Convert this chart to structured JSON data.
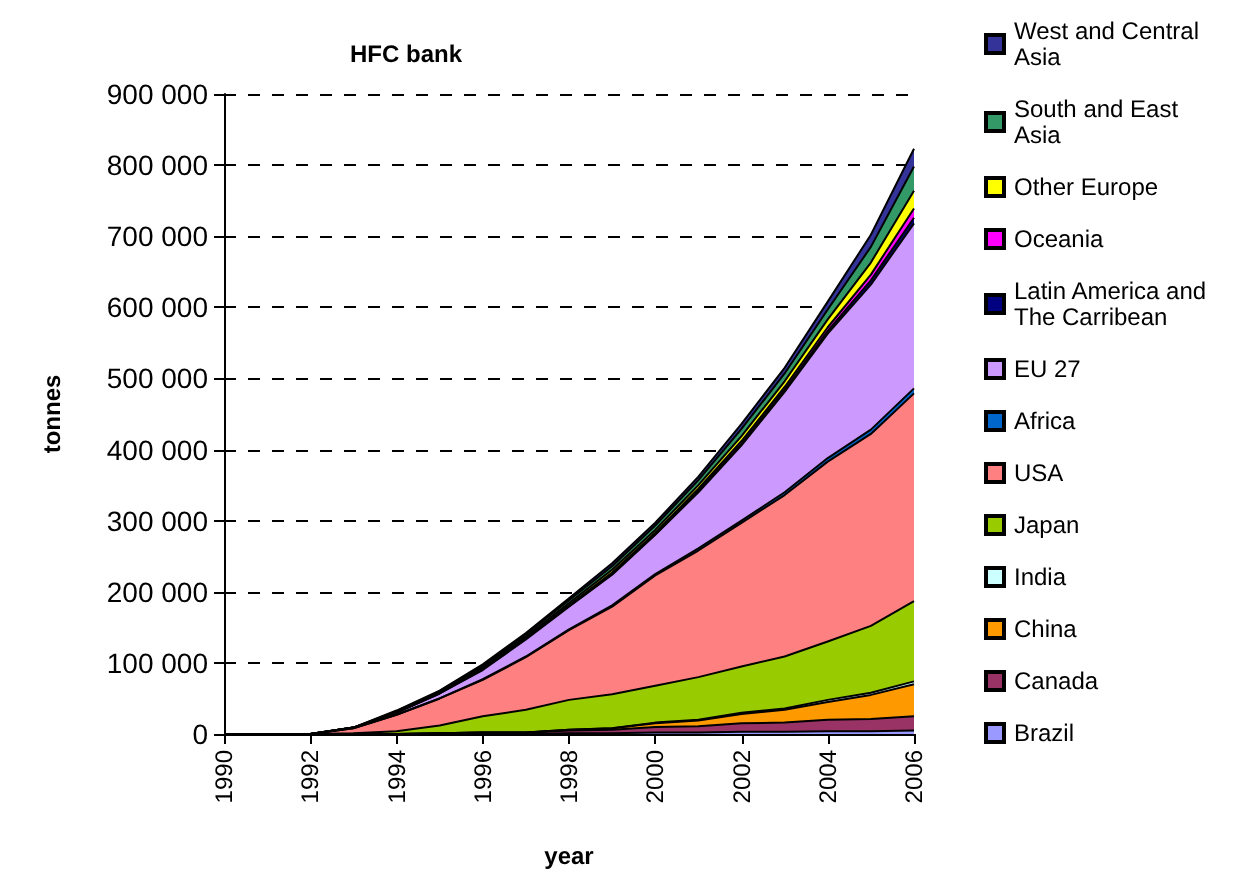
{
  "chart_data": {
    "type": "area",
    "title": "HFC bank",
    "xlabel": "year",
    "ylabel": "tonnes",
    "stacked": true,
    "grid": "y",
    "line_style": "solid",
    "legend": "right",
    "x": [
      1990,
      1991,
      1992,
      1993,
      1994,
      1995,
      1996,
      1997,
      1998,
      1999,
      2000,
      2001,
      2002,
      2003,
      2004,
      2005,
      2006
    ],
    "xlim": [
      1990,
      2006
    ],
    "xticks": [
      1990,
      1992,
      1994,
      1996,
      1998,
      2000,
      2002,
      2004,
      2006
    ],
    "ylim": [
      0,
      900000
    ],
    "yticks": [
      {
        "value": 0,
        "label": "0"
      },
      {
        "value": 100000,
        "label": "100 000"
      },
      {
        "value": 200000,
        "label": "200 000"
      },
      {
        "value": 300000,
        "label": "300 000"
      },
      {
        "value": 400000,
        "label": "400 000"
      },
      {
        "value": 500000,
        "label": "500 000"
      },
      {
        "value": 600000,
        "label": "600 000"
      },
      {
        "value": 700000,
        "label": "700 000"
      },
      {
        "value": 800000,
        "label": "800 000"
      },
      {
        "value": 900000,
        "label": "900 000"
      }
    ],
    "series": [
      {
        "name": "Brazil",
        "color": "#9999ff",
        "values": [
          0,
          0,
          0,
          0,
          0,
          0,
          0,
          0,
          1000,
          1000,
          2000,
          2000,
          3000,
          3000,
          4000,
          4000,
          5000
        ]
      },
      {
        "name": "Canada",
        "color": "#993366",
        "values": [
          0,
          0,
          0,
          0,
          0,
          1000,
          2000,
          2000,
          4000,
          5000,
          8000,
          9000,
          12000,
          13000,
          16000,
          17000,
          20000
        ]
      },
      {
        "name": "China",
        "color": "#ff9900",
        "values": [
          0,
          0,
          0,
          0,
          0,
          0,
          0,
          0,
          1000,
          2000,
          5000,
          8000,
          13000,
          18000,
          25000,
          34000,
          45000
        ]
      },
      {
        "name": "India",
        "color": "#ccffff",
        "values": [
          0,
          0,
          0,
          0,
          0,
          0,
          0,
          0,
          0,
          0,
          1000,
          1000,
          2000,
          2000,
          3000,
          3000,
          4000
        ]
      },
      {
        "name": "Japan",
        "color": "#99cc00",
        "values": [
          0,
          0,
          0,
          1000,
          4000,
          11000,
          23000,
          32000,
          42000,
          48000,
          52000,
          60000,
          65000,
          73000,
          82000,
          94000,
          113000
        ]
      },
      {
        "name": "USA",
        "color": "#ff8080",
        "values": [
          0,
          0,
          0,
          7000,
          23000,
          38000,
          51000,
          74000,
          98000,
          123000,
          155000,
          178000,
          202000,
          227000,
          253000,
          270000,
          292000
        ]
      },
      {
        "name": "Africa",
        "color": "#0066cc",
        "values": [
          0,
          0,
          0,
          0,
          0,
          0,
          1000,
          1000,
          1000,
          2000,
          2000,
          3000,
          3000,
          4000,
          5000,
          6000,
          7000
        ]
      },
      {
        "name": "EU 27",
        "color": "#cc99ff",
        "values": [
          0,
          0,
          0,
          1000,
          3000,
          7000,
          13000,
          24000,
          32000,
          43000,
          55000,
          79000,
          106000,
          141000,
          175000,
          204000,
          232000
        ]
      },
      {
        "name": "Latin America and The Carribean",
        "color": "#000080",
        "values": [
          0,
          0,
          0,
          0,
          0,
          0,
          1000,
          1000,
          1000,
          1000,
          1000,
          2000,
          2000,
          3000,
          4000,
          6000,
          8000
        ]
      },
      {
        "name": "Oceania",
        "color": "#ff00ff",
        "values": [
          0,
          0,
          0,
          0,
          0,
          1000,
          1000,
          1000,
          1000,
          2000,
          2000,
          3000,
          4000,
          4000,
          5000,
          8000,
          13000
        ]
      },
      {
        "name": "Other Europe",
        "color": "#ffff00",
        "values": [
          0,
          0,
          0,
          0,
          1000,
          1000,
          2000,
          2000,
          3000,
          4000,
          4000,
          5000,
          7000,
          8000,
          11000,
          17000,
          25000
        ]
      },
      {
        "name": "South and East Asia",
        "color": "#339966",
        "values": [
          0,
          0,
          0,
          0,
          1000,
          1000,
          2000,
          3000,
          4000,
          5000,
          6000,
          7000,
          10000,
          11000,
          14000,
          22000,
          34000
        ]
      },
      {
        "name": "West and Central Asia",
        "color": "#333399",
        "values": [
          0,
          0,
          0,
          0,
          1000,
          1000,
          2000,
          2000,
          3000,
          4000,
          4000,
          5000,
          7000,
          8000,
          11000,
          17000,
          25000
        ]
      }
    ]
  }
}
